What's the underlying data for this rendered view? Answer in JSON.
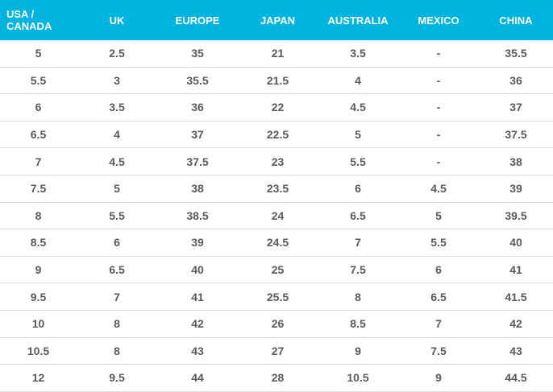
{
  "table": {
    "header": [
      "USA /\nCANADA",
      "UK",
      "EUROPE",
      "JAPAN",
      "AUSTRALIA",
      "MEXICO",
      "CHINA"
    ],
    "rows": [
      [
        "5",
        "2.5",
        "35",
        "21",
        "3.5",
        "-",
        "35.5"
      ],
      [
        "5.5",
        "3",
        "35.5",
        "21.5",
        "4",
        "-",
        "36"
      ],
      [
        "6",
        "3.5",
        "36",
        "22",
        "4.5",
        "-",
        "37"
      ],
      [
        "6.5",
        "4",
        "37",
        "22.5",
        "5",
        "-",
        "37.5"
      ],
      [
        "7",
        "4.5",
        "37.5",
        "23",
        "5.5",
        "-",
        "38"
      ],
      [
        "7.5",
        "5",
        "38",
        "23.5",
        "6",
        "4.5",
        "39"
      ],
      [
        "8",
        "5.5",
        "38.5",
        "24",
        "6.5",
        "5",
        "39.5"
      ],
      [
        "8.5",
        "6",
        "39",
        "24.5",
        "7",
        "5.5",
        "40"
      ],
      [
        "9",
        "6.5",
        "40",
        "25",
        "7.5",
        "6",
        "41"
      ],
      [
        "9.5",
        "7",
        "41",
        "25.5",
        "8",
        "6.5",
        "41.5"
      ],
      [
        "10",
        "8",
        "42",
        "26",
        "8.5",
        "7",
        "42"
      ],
      [
        "10.5",
        "8",
        "43",
        "27",
        "9",
        "7.5",
        "43"
      ],
      [
        "12",
        "9.5",
        "44",
        "28",
        "10.5",
        "9",
        "44.5"
      ]
    ]
  }
}
